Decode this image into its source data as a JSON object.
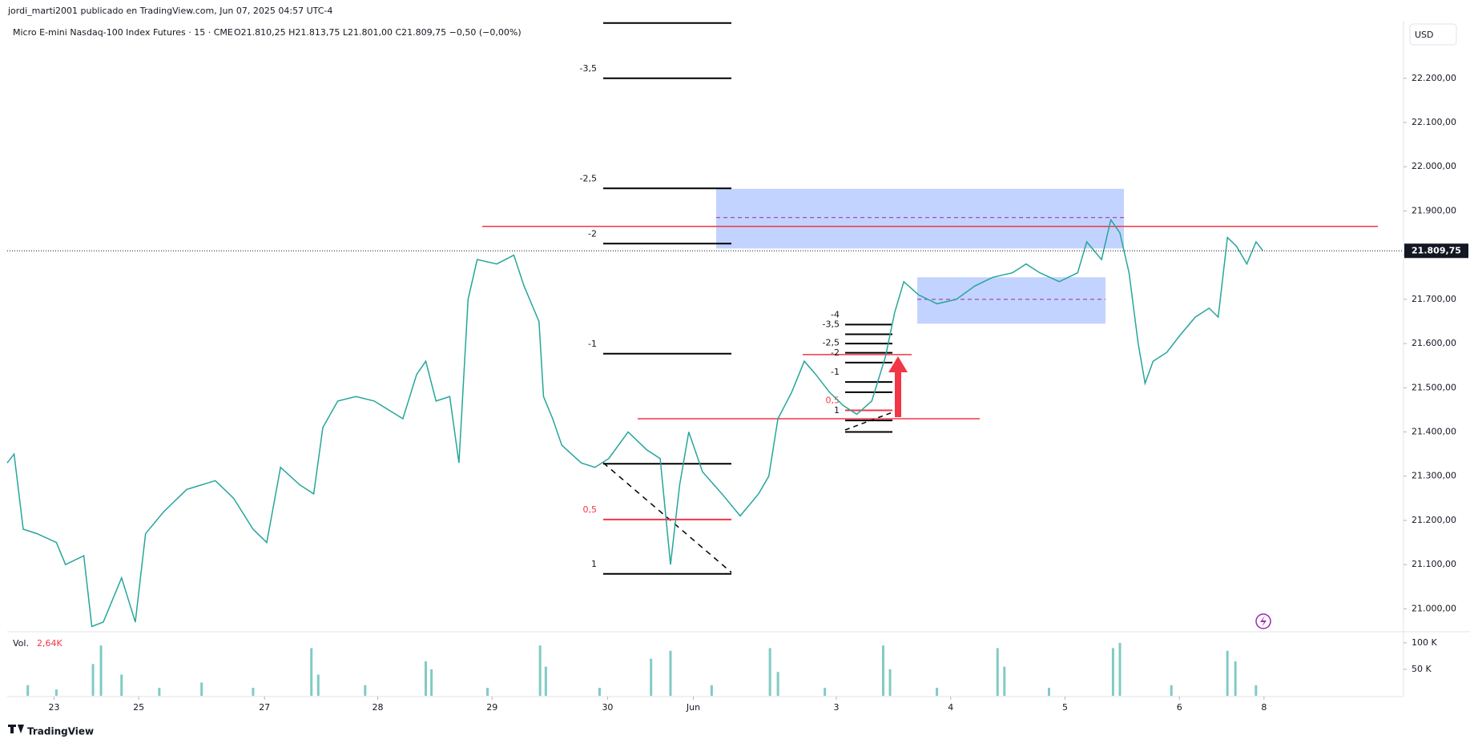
{
  "header": {
    "publisher": "jordi_marti2001 publicado en TradingView.com, Jun 07, 2025 04:57 UTC-4",
    "symbol": "Micro E-mini Nasdaq-100 Index Futures · 15 · CME",
    "ohlc": "O21.810,25  H21.813,75  L21.801,00  C21.809,75  −0,50 (−0,00%)",
    "currency": "USD",
    "footer": "TradingView"
  },
  "chart_data": [
    {
      "type": "line",
      "series": [
        {
          "name": "Micro E-mini Nasdaq-100 Index Futures",
          "color": "#26a69a",
          "values": [
            21330,
            21350,
            21180,
            21170,
            21150,
            21100,
            21120,
            20960,
            20970,
            21070,
            20970,
            21170,
            21220,
            21270,
            21290,
            21250,
            21180,
            21150,
            21320,
            21280,
            21260,
            21410,
            21470,
            21480,
            21470,
            21430,
            21530,
            21560,
            21470,
            21480,
            21330,
            21700,
            21790,
            21780,
            21800,
            21730,
            21650,
            21480,
            21430,
            21370,
            21330,
            21320,
            21340,
            21400,
            21360,
            21340,
            21100,
            21280,
            21400,
            21310,
            21260,
            21210,
            21260,
            21300,
            21430,
            21490,
            21560,
            21530,
            21490,
            21460,
            21440,
            21470,
            21570,
            21670,
            21740,
            21710,
            21690,
            21700,
            21730,
            21750,
            21760,
            21780,
            21760,
            21740,
            21760,
            21830,
            21790,
            21880,
            21850,
            21760,
            21600,
            21510,
            21560,
            21580,
            21620,
            21660,
            21680,
            21660,
            21840,
            21820,
            21780,
            21830,
            21810
          ]
        }
      ],
      "x": [
        -0.41,
        -0.35,
        -0.27,
        -0.15,
        0.02,
        0.1,
        0.26,
        0.33,
        0.43,
        0.59,
        0.71,
        0.8,
        0.96,
        1.16,
        1.41,
        1.57,
        1.74,
        1.86,
        1.98,
        2.15,
        2.27,
        2.35,
        2.48,
        2.64,
        2.8,
        3.05,
        3.17,
        3.25,
        3.34,
        3.46,
        3.54,
        3.62,
        3.7,
        3.87,
        4.02,
        4.11,
        4.24,
        4.28,
        4.36,
        4.44,
        4.61,
        4.73,
        4.85,
        5.02,
        5.18,
        5.3,
        5.39,
        5.47,
        5.55,
        5.67,
        5.84,
        6.0,
        6.16,
        6.25,
        6.33,
        6.45,
        6.56,
        6.66,
        6.78,
        6.9,
        7.02,
        7.15,
        7.27,
        7.35,
        7.43,
        7.56,
        7.72,
        7.89,
        8.05,
        8.21,
        8.38,
        8.5,
        8.62,
        8.79,
        8.95,
        9.03,
        9.16,
        9.24,
        9.32,
        9.4,
        9.48,
        9.54,
        9.61,
        9.73,
        9.85,
        9.98,
        10.1,
        10.18,
        10.26,
        10.34,
        10.43,
        10.51,
        10.57
      ],
      "xlim": [
        -0.41,
        11.8
      ],
      "xticks": [
        {
          "value": 0,
          "label": "23"
        },
        {
          "value": 0.74,
          "label": "25"
        },
        {
          "value": 1.84,
          "label": "27"
        },
        {
          "value": 2.83,
          "label": "28"
        },
        {
          "value": 3.83,
          "label": "29"
        },
        {
          "value": 4.84,
          "label": "30"
        },
        {
          "value": 5.59,
          "label": "Jun"
        },
        {
          "value": 6.84,
          "label": "3"
        },
        {
          "value": 7.84,
          "label": "4"
        },
        {
          "value": 8.84,
          "label": "5"
        },
        {
          "value": 9.84,
          "label": "6"
        },
        {
          "value": 10.58,
          "label": "8"
        }
      ],
      "ylim": [
        20950,
        22330
      ],
      "yticks": [
        {
          "value": 21000,
          "label": "21.000,00"
        },
        {
          "value": 21100,
          "label": "21.100,00"
        },
        {
          "value": 21200,
          "label": "21.200,00"
        },
        {
          "value": 21300,
          "label": "21.300,00"
        },
        {
          "value": 21400,
          "label": "21.400,00"
        },
        {
          "value": 21500,
          "label": "21.500,00"
        },
        {
          "value": 21600,
          "label": "21.600,00"
        },
        {
          "value": 21700,
          "label": "21.700,00"
        },
        {
          "value": 21800,
          "label": "21.800,00"
        },
        {
          "value": 21900,
          "label": "21.900,00"
        },
        {
          "value": 22000,
          "label": "22.000,00"
        },
        {
          "value": 22100,
          "label": "22.100,00"
        },
        {
          "value": 22200,
          "label": "22.200,00"
        }
      ],
      "last_price": {
        "value": 21809.75,
        "label": "21.809,75"
      },
      "red_lines": [
        21865,
        21430,
        21575
      ],
      "zones": [
        {
          "top": 21950,
          "bottom": 21815,
          "mid": 21885
        },
        {
          "top": 21750,
          "bottom": 21645,
          "mid": 21700
        }
      ],
      "fib_large": [
        {
          "label": "-3,5",
          "value": 22200
        },
        {
          "label": "-2,5",
          "value": 21951
        },
        {
          "label": "-2",
          "value": 21826
        },
        {
          "label": "-1",
          "value": 21577
        },
        {
          "label": "0,5",
          "value": 21202,
          "color": "#f23645"
        },
        {
          "label": "1",
          "value": 21079
        }
      ],
      "fib_large_unlabeled": [
        22325,
        21328
      ],
      "fib_small": [
        {
          "label": "-4",
          "value": 21643
        },
        {
          "label": "-3,5",
          "value": 21621
        },
        {
          "label": "-2,5",
          "value": 21579
        },
        {
          "label": "-2",
          "value": 21557
        },
        {
          "label": "-1",
          "value": 21513
        },
        {
          "label": "0,5",
          "value": 21449,
          "color": "#f23645"
        },
        {
          "label": "1",
          "value": 21426
        }
      ],
      "fib_small_unlabeled": [
        21600,
        21490,
        21400
      ]
    },
    {
      "type": "bar",
      "title": "Vol.",
      "current": "2,64K",
      "color": "#80cbc4",
      "x": [
        -0.23,
        0.02,
        0.34,
        0.41,
        0.59,
        0.92,
        1.29,
        1.74,
        2.25,
        2.31,
        2.72,
        3.25,
        3.3,
        3.79,
        4.25,
        4.3,
        4.77,
        5.22,
        5.39,
        5.75,
        6.26,
        6.33,
        6.74,
        7.25,
        7.31,
        7.72,
        8.25,
        8.31,
        8.7,
        9.26,
        9.32,
        9.77,
        10.26,
        10.33,
        10.51
      ],
      "values": [
        20000,
        12000,
        60000,
        95000,
        40000,
        15000,
        25000,
        15000,
        90000,
        40000,
        20000,
        65000,
        50000,
        15000,
        95000,
        55000,
        15000,
        70000,
        85000,
        20000,
        90000,
        45000,
        15000,
        95000,
        50000,
        15000,
        90000,
        55000,
        15000,
        90000,
        100000,
        20000,
        85000,
        65000,
        20000
      ],
      "xlim": [
        -0.41,
        11.8
      ],
      "ylim": [
        0,
        118000
      ],
      "yticks": [
        {
          "value": 50000,
          "label": "50 K"
        },
        {
          "value": 100000,
          "label": "100 K"
        }
      ]
    }
  ]
}
